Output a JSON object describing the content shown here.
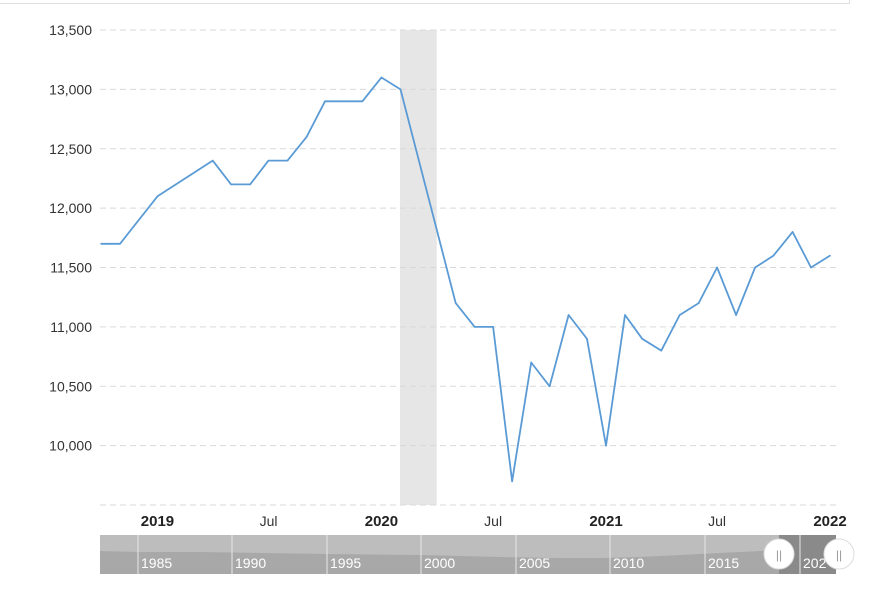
{
  "chart_data": {
    "type": "line",
    "title": "",
    "xlabel": "",
    "ylabel": "",
    "ylim": [
      9500,
      13500
    ],
    "yticks": [
      "13,500",
      "13,000",
      "12,500",
      "12,000",
      "11,500",
      "11,000",
      "10,500",
      "10,000"
    ],
    "ytick_values": [
      13500,
      13000,
      12500,
      12000,
      11500,
      11000,
      10500,
      10000
    ],
    "xticks": [
      {
        "label": "2019",
        "date": "2019-01",
        "bold": true
      },
      {
        "label": "Jul",
        "date": "2019-07",
        "bold": false
      },
      {
        "label": "2020",
        "date": "2020-01",
        "bold": true
      },
      {
        "label": "Jul",
        "date": "2020-07",
        "bold": false
      },
      {
        "label": "2021",
        "date": "2021-01",
        "bold": true
      },
      {
        "label": "Jul",
        "date": "2021-07",
        "bold": false
      },
      {
        "label": "2022",
        "date": "2022-01",
        "bold": true
      }
    ],
    "grid": "horizontal dashed",
    "line_color": "#5b9bd5",
    "recession_color": "#e6e6e6",
    "recession_band": [
      "2020-02",
      "2020-04"
    ],
    "series": [
      {
        "x": [
          "2018-10",
          "2018-11",
          "2019-01",
          "2019-04",
          "2019-05",
          "2019-06",
          "2019-07",
          "2019-08",
          "2019-09",
          "2019-10",
          "2019-11",
          "2019-12",
          "2020-01",
          "2020-02",
          "2020-05",
          "2020-06",
          "2020-07",
          "2020-08",
          "2020-09",
          "2020-10",
          "2020-11",
          "2020-12",
          "2021-01",
          "2021-02",
          "2021-03",
          "2021-04",
          "2021-05",
          "2021-06",
          "2021-07",
          "2021-08",
          "2021-09",
          "2021-10",
          "2021-11",
          "2021-12",
          "2022-01"
        ],
        "values": [
          11700,
          11700,
          12100,
          12400,
          12200,
          12200,
          12400,
          12400,
          12600,
          12900,
          12900,
          12900,
          13100,
          13000,
          11200,
          11000,
          11000,
          9700,
          10700,
          10500,
          11100,
          10900,
          10000,
          11100,
          10900,
          10800,
          11100,
          11200,
          11500,
          11100,
          11500,
          11600,
          11800,
          11500,
          11600
        ]
      }
    ]
  },
  "navigator": {
    "labels": [
      "1985",
      "1990",
      "1995",
      "2000",
      "2005",
      "2010",
      "2015",
      "202"
    ],
    "handle_glyph": "||"
  }
}
